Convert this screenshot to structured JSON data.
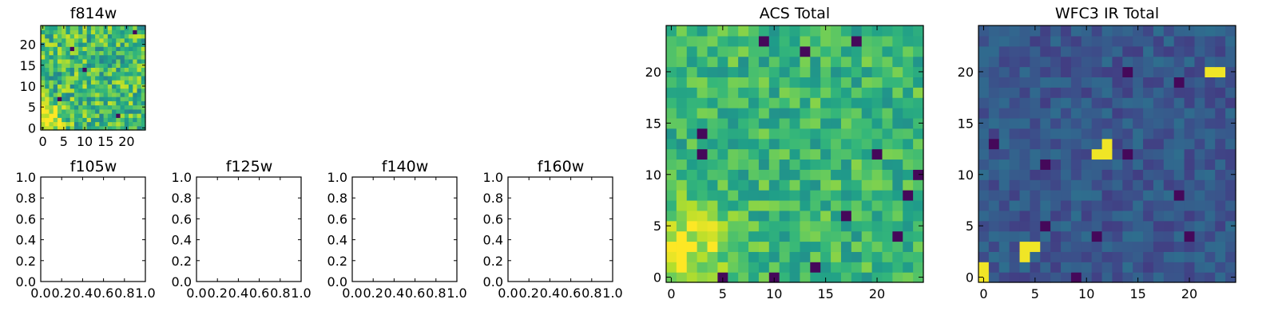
{
  "chart_data": [
    {
      "type": "heatmap",
      "title": "f814w",
      "grid_size": 25,
      "xlim": [
        -0.5,
        24.5
      ],
      "ylim": [
        -0.5,
        24.5
      ],
      "xticks": [
        0,
        5,
        10,
        15,
        20
      ],
      "yticks": [
        0,
        5,
        10,
        15,
        20
      ],
      "colormap": "viridis",
      "value_range": [
        0,
        1
      ],
      "pattern": "noisy field, mostly mid-to-high values, bright source at lower-left corner",
      "seed": 11,
      "base_mean": 0.68,
      "noise": 0.24,
      "sources": [
        {
          "x": 1,
          "y": 2,
          "amp": 0.45,
          "sigma": 2.6
        }
      ],
      "dark_pixels": [
        [
          22,
          23
        ],
        [
          10,
          14
        ],
        [
          4,
          7
        ],
        [
          18,
          3
        ],
        [
          7,
          19
        ]
      ]
    },
    {
      "type": "empty",
      "title": "f105w",
      "xlim": [
        0,
        1
      ],
      "ylim": [
        0,
        1
      ],
      "xticks": [
        "0.0",
        "0.2",
        "0.4",
        "0.6",
        "0.8",
        "1.0"
      ],
      "yticks": [
        "0.0",
        "0.2",
        "0.4",
        "0.6",
        "0.8",
        "1.0"
      ]
    },
    {
      "type": "empty",
      "title": "f125w",
      "xlim": [
        0,
        1
      ],
      "ylim": [
        0,
        1
      ],
      "xticks": [
        "0.0",
        "0.2",
        "0.4",
        "0.6",
        "0.8",
        "1.0"
      ],
      "yticks": [
        "0.0",
        "0.2",
        "0.4",
        "0.6",
        "0.8",
        "1.0"
      ]
    },
    {
      "type": "empty",
      "title": "f140w",
      "xlim": [
        0,
        1
      ],
      "ylim": [
        0,
        1
      ],
      "xticks": [
        "0.0",
        "0.2",
        "0.4",
        "0.6",
        "0.8",
        "1.0"
      ],
      "yticks": [
        "0.0",
        "0.2",
        "0.4",
        "0.6",
        "0.8",
        "1.0"
      ]
    },
    {
      "type": "empty",
      "title": "f160w",
      "xlim": [
        0,
        1
      ],
      "ylim": [
        0,
        1
      ],
      "xticks": [
        "0.0",
        "0.2",
        "0.4",
        "0.6",
        "0.8",
        "1.0"
      ],
      "yticks": [
        "0.0",
        "0.2",
        "0.4",
        "0.6",
        "0.8",
        "1.0"
      ]
    },
    {
      "type": "heatmap",
      "title": "ACS Total",
      "grid_size": 25,
      "xlim": [
        -0.5,
        24.5
      ],
      "ylim": [
        -0.5,
        24.5
      ],
      "xticks": [
        0,
        5,
        10,
        15,
        20
      ],
      "yticks": [
        0,
        5,
        10,
        15,
        20
      ],
      "colormap": "viridis",
      "value_range": [
        0,
        1
      ],
      "pattern": "noisy field, mostly green-yellow, brightest at lower-left, scattered dark pixels",
      "seed": 23,
      "base_mean": 0.66,
      "noise": 0.16,
      "sources": [
        {
          "x": 1,
          "y": 3,
          "amp": 0.32,
          "sigma": 3.2
        }
      ],
      "dark_pixels": [
        [
          5,
          0
        ],
        [
          9,
          23
        ],
        [
          18,
          23
        ],
        [
          13,
          22
        ],
        [
          3,
          14
        ],
        [
          3,
          12
        ],
        [
          20,
          12
        ],
        [
          24,
          10
        ],
        [
          23,
          8
        ],
        [
          17,
          6
        ],
        [
          14,
          1
        ],
        [
          10,
          0
        ],
        [
          22,
          4
        ]
      ]
    },
    {
      "type": "heatmap",
      "title": "WFC3 IR Total",
      "grid_size": 25,
      "xlim": [
        -0.5,
        24.5
      ],
      "ylim": [
        -0.5,
        24.5
      ],
      "xticks": [
        0,
        5,
        10,
        15,
        20
      ],
      "yticks": [
        0,
        5,
        10,
        15,
        20
      ],
      "colormap": "viridis",
      "value_range": [
        0,
        1
      ],
      "pattern": "dark blue noisy field with a few bright yellow compact sources",
      "seed": 37,
      "base_mean": 0.27,
      "noise": 0.09,
      "sources": [],
      "bright_pixels": [
        [
          0,
          0
        ],
        [
          0,
          1
        ],
        [
          4,
          2
        ],
        [
          4,
          3
        ],
        [
          5,
          3
        ],
        [
          11,
          12
        ],
        [
          12,
          12
        ],
        [
          12,
          13
        ],
        [
          22,
          20
        ],
        [
          23,
          20
        ]
      ],
      "dark_pixels": [
        [
          14,
          12
        ],
        [
          6,
          11
        ],
        [
          19,
          8
        ],
        [
          20,
          4
        ],
        [
          11,
          4
        ],
        [
          6,
          5
        ],
        [
          19,
          19
        ],
        [
          9,
          0
        ],
        [
          1,
          13
        ],
        [
          14,
          20
        ]
      ]
    }
  ]
}
